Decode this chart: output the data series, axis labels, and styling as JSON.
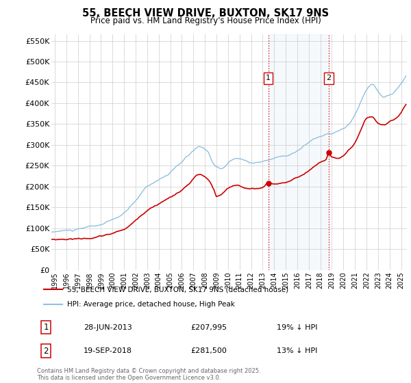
{
  "title": "55, BEECH VIEW DRIVE, BUXTON, SK17 9NS",
  "subtitle": "Price paid vs. HM Land Registry's House Price Index (HPI)",
  "ylabel_ticks": [
    "£0",
    "£50K",
    "£100K",
    "£150K",
    "£200K",
    "£250K",
    "£300K",
    "£350K",
    "£400K",
    "£450K",
    "£500K",
    "£550K"
  ],
  "ytick_values": [
    0,
    50000,
    100000,
    150000,
    200000,
    250000,
    300000,
    350000,
    400000,
    450000,
    500000,
    550000
  ],
  "ylim": [
    0,
    565000
  ],
  "xlim_start": 1994.7,
  "xlim_end": 2025.5,
  "hpi_color": "#8fc0e0",
  "price_color": "#cc0000",
  "sale1_date": 2013.487,
  "sale1_price": 207995,
  "sale2_date": 2018.72,
  "sale2_price": 281500,
  "ann_y": 460000,
  "legend_label1": "55, BEECH VIEW DRIVE, BUXTON, SK17 9NS (detached house)",
  "legend_label2": "HPI: Average price, detached house, High Peak",
  "annotation1": "1",
  "annotation2": "2",
  "ann1_date_str": "28-JUN-2013",
  "ann1_price_str": "£207,995",
  "ann1_hpi_str": "19% ↓ HPI",
  "ann2_date_str": "19-SEP-2018",
  "ann2_price_str": "£281,500",
  "ann2_hpi_str": "13% ↓ HPI",
  "footer": "Contains HM Land Registry data © Crown copyright and database right 2025.\nThis data is licensed under the Open Government Licence v3.0.",
  "background_color": "#ffffff",
  "grid_color": "#cccccc"
}
